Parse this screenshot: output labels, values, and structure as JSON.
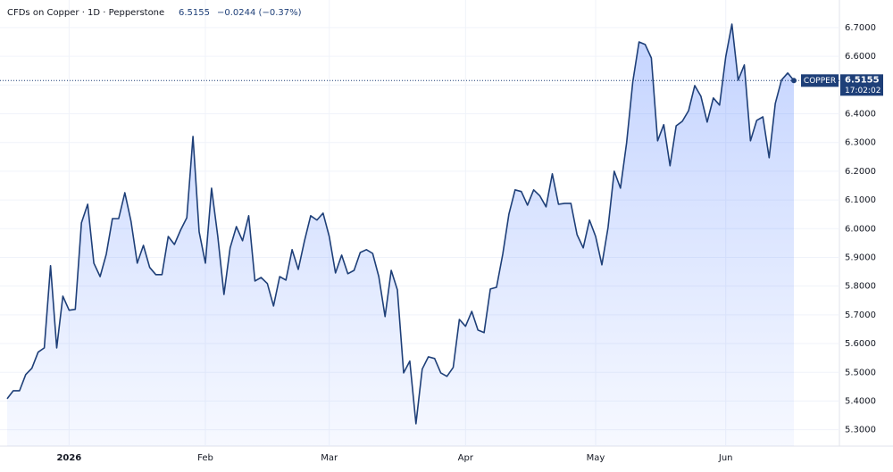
{
  "chart_data": {
    "type": "area",
    "header": {
      "symbol": "CFDs on Copper · 1D · Pepperstone",
      "price": "6.5155",
      "change": "−0.0244 (−0.37%)"
    },
    "tag": {
      "name": "COPPER",
      "price": "6.5155",
      "countdown": "17:02:02"
    },
    "categories": [
      null,
      null,
      null,
      null,
      null,
      null,
      null,
      null,
      null,
      null,
      "2026",
      null,
      null,
      null,
      null,
      null,
      null,
      null,
      null,
      null,
      null,
      null,
      null,
      null,
      null,
      null,
      null,
      null,
      null,
      null,
      null,
      null,
      "Feb",
      null,
      null,
      null,
      null,
      null,
      null,
      null,
      null,
      null,
      null,
      null,
      null,
      null,
      null,
      null,
      null,
      null,
      null,
      null,
      "Mar",
      null,
      null,
      null,
      null,
      null,
      null,
      null,
      null,
      null,
      null,
      null,
      null,
      null,
      null,
      null,
      null,
      null,
      null,
      null,
      null,
      null,
      "Apr",
      null,
      null,
      null,
      null,
      null,
      null,
      null,
      null,
      null,
      null,
      null,
      null,
      null,
      null,
      null,
      null,
      null,
      null,
      null,
      null,
      "May",
      null,
      null,
      null,
      null,
      null,
      null,
      null,
      null,
      null,
      null,
      null,
      null,
      null,
      null,
      null,
      null,
      null,
      null,
      null,
      null,
      "Jun",
      null,
      null,
      null,
      null,
      null,
      null,
      null,
      null,
      null,
      null,
      null
    ],
    "series": [
      {
        "color": "#1e3f78",
        "values": [
          5.408,
          5.436,
          5.436,
          5.492,
          5.514,
          5.57,
          5.585,
          5.871,
          5.585,
          5.765,
          5.716,
          5.719,
          6.02,
          6.085,
          5.88,
          5.833,
          5.911,
          6.035,
          6.035,
          6.125,
          6.026,
          5.88,
          5.942,
          5.865,
          5.84,
          5.84,
          5.973,
          5.945,
          5.995,
          6.038,
          6.321,
          5.989,
          5.88,
          6.141,
          5.973,
          5.771,
          5.933,
          6.007,
          5.958,
          6.045,
          5.818,
          5.83,
          5.809,
          5.731,
          5.833,
          5.821,
          5.927,
          5.858,
          5.958,
          6.045,
          6.03,
          6.054,
          5.973,
          5.846,
          5.908,
          5.843,
          5.855,
          5.917,
          5.927,
          5.914,
          5.833,
          5.694,
          5.855,
          5.787,
          5.498,
          5.539,
          5.321,
          5.511,
          5.554,
          5.548,
          5.498,
          5.486,
          5.517,
          5.684,
          5.66,
          5.712,
          5.647,
          5.638,
          5.79,
          5.796,
          5.911,
          6.051,
          6.135,
          6.129,
          6.082,
          6.135,
          6.114,
          6.076,
          6.191,
          6.085,
          6.088,
          6.088,
          5.979,
          5.933,
          6.03,
          5.973,
          5.874,
          6.004,
          6.2,
          6.141,
          6.299,
          6.511,
          6.65,
          6.641,
          6.594,
          6.306,
          6.362,
          6.219,
          6.358,
          6.374,
          6.411,
          6.498,
          6.461,
          6.371,
          6.455,
          6.43,
          6.598,
          6.712,
          6.517,
          6.57,
          6.306,
          6.377,
          6.389,
          6.247,
          6.436,
          6.517,
          6.542,
          6.5155
        ]
      }
    ],
    "ylim": [
      5.243,
      6.796
    ],
    "yticks": [
      {
        "value": 5.3,
        "label": "5.3000"
      },
      {
        "value": 5.4,
        "label": "5.4000"
      },
      {
        "value": 5.5,
        "label": "5.5000"
      },
      {
        "value": 5.6,
        "label": "5.6000"
      },
      {
        "value": 5.7,
        "label": "5.7000"
      },
      {
        "value": 5.8,
        "label": "5.8000"
      },
      {
        "value": 5.9,
        "label": "5.9000"
      },
      {
        "value": 6.0,
        "label": "6.0000"
      },
      {
        "value": 6.1,
        "label": "6.1000"
      },
      {
        "value": 6.2,
        "label": "6.2000"
      },
      {
        "value": 6.3,
        "label": "6.3000"
      },
      {
        "value": 6.4,
        "label": "6.4000"
      },
      {
        "value": 6.5,
        "label": "6.5000"
      },
      {
        "value": 6.6,
        "label": "6.6000"
      },
      {
        "value": 6.7,
        "label": "6.7000"
      }
    ],
    "grid": true
  }
}
